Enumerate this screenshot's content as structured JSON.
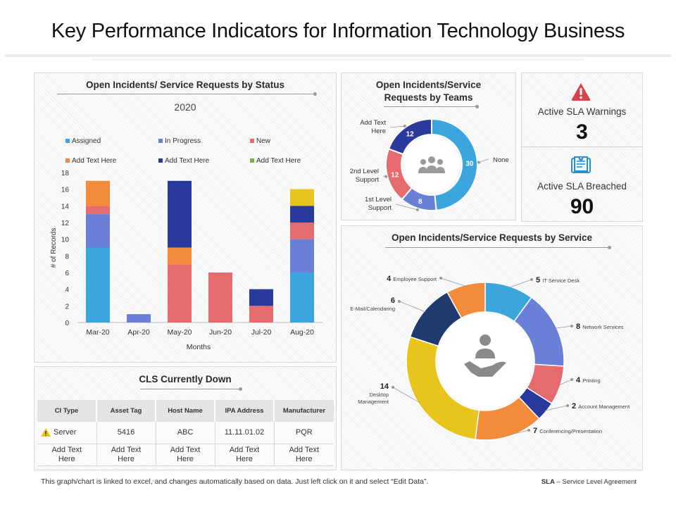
{
  "title": "Key Performance Indicators for Information Technology Business",
  "status_panel": {
    "title": "Open Incidents/ Service Requests by Status",
    "subtitle": "2020"
  },
  "teams_panel": {
    "title_line1": "Open Incidents/Service",
    "title_line2": "Requests by Teams"
  },
  "kpis": {
    "warnings_label": "Active SLA Warnings",
    "warnings_value": "3",
    "breached_label": "Active SLA Breached",
    "breached_value": "90"
  },
  "service_panel": {
    "title": "Open Incidents/Service Requests by Service"
  },
  "cls_panel": {
    "title": "CLS Currently Down",
    "headers": [
      "CI Type",
      "Asset Tag",
      "Host Name",
      "IPA Address",
      "Manufacturer"
    ],
    "rows": [
      [
        "Server",
        "5416",
        "ABC",
        "11.11.01.02",
        "PQR"
      ],
      [
        "Add Text Here",
        "Add Text Here",
        "Add Text Here",
        "Add Text Here",
        "Add Text Here"
      ]
    ]
  },
  "footer": {
    "note": "This graph/chart is linked to excel, and changes automatically based on data. Just left click on it and select “Edit Data”.",
    "sla_abbr": "SLA",
    "sla_def": " – Service Level Agreement"
  },
  "colors": {
    "assigned": "#3aa6dd",
    "in_progress": "#6a7fd6",
    "new": "#e56b6f",
    "add1": "#f28c3b",
    "add2": "#2a3a9c",
    "add3": "#7cb342",
    "yellow": "#e8c41e",
    "darknavy": "#1f3a6e"
  },
  "chart_data": [
    {
      "type": "bar",
      "stacked": true,
      "title": "Open Incidents/ Service Requests by Status",
      "subtitle": "2020",
      "xlabel": "Months",
      "ylabel": "# of Records",
      "ylim": [
        0,
        18
      ],
      "yticks": [
        0,
        2,
        4,
        6,
        8,
        10,
        12,
        14,
        16,
        18
      ],
      "categories": [
        "Mar-20",
        "Apr-20",
        "May-20",
        "Jun-20",
        "Jul-20",
        "Aug-20"
      ],
      "series": [
        {
          "name": "Assigned",
          "color": "#3aa6dd",
          "values": [
            9,
            0,
            0,
            0,
            0,
            6
          ]
        },
        {
          "name": "In Progress",
          "color": "#6a7fd6",
          "values": [
            4,
            1,
            0,
            0,
            0,
            4
          ]
        },
        {
          "name": "New",
          "color": "#e56b6f",
          "values": [
            1,
            0,
            7,
            6,
            2,
            2
          ]
        },
        {
          "name": "Add Text Here",
          "color": "#f28c3b",
          "values": [
            3,
            0,
            2,
            0,
            0,
            0
          ]
        },
        {
          "name": "Add Text Here",
          "color": "#2a3a9c",
          "values": [
            0,
            0,
            8,
            0,
            2,
            2
          ]
        },
        {
          "name": "Add Text Here",
          "color": "#7cb342",
          "values": [
            0,
            0,
            0,
            0,
            0,
            0
          ]
        },
        {
          "name": "",
          "color": "#e8c41e",
          "values": [
            0,
            0,
            0,
            0,
            0,
            2
          ]
        }
      ],
      "legend": "top"
    },
    {
      "type": "pie",
      "donut": true,
      "title": "Open Incidents/Service Requests by Teams",
      "slices": [
        {
          "label": "None",
          "value": 30,
          "color": "#3aa6dd"
        },
        {
          "label": "1st Level Support",
          "value": 8,
          "color": "#6a7fd6"
        },
        {
          "label": "2nd Level Support",
          "value": 12,
          "color": "#e56b6f"
        },
        {
          "label": "Add Text Here",
          "value": 12,
          "color": "#2a3a9c"
        }
      ]
    },
    {
      "type": "pie",
      "donut": true,
      "title": "Open Incidents/Service Requests by Service",
      "slices": [
        {
          "label": "IT Service Desk",
          "value": 5,
          "color": "#3aa6dd"
        },
        {
          "label": "Network Services",
          "value": 8,
          "color": "#6a7fd6"
        },
        {
          "label": "Printing",
          "value": 4,
          "color": "#e56b6f"
        },
        {
          "label": "Account Management",
          "value": 2,
          "color": "#2a3a9c"
        },
        {
          "label": "Conferencing/Presentation",
          "value": 7,
          "color": "#f28c3b"
        },
        {
          "label": "Desktop Management",
          "value": 14,
          "color": "#e8c41e"
        },
        {
          "label": "E-Mail/Calendaring",
          "value": 6,
          "color": "#1f3a6e"
        },
        {
          "label": "Employee Support",
          "value": 4,
          "color": "#f28c3b"
        }
      ]
    }
  ]
}
